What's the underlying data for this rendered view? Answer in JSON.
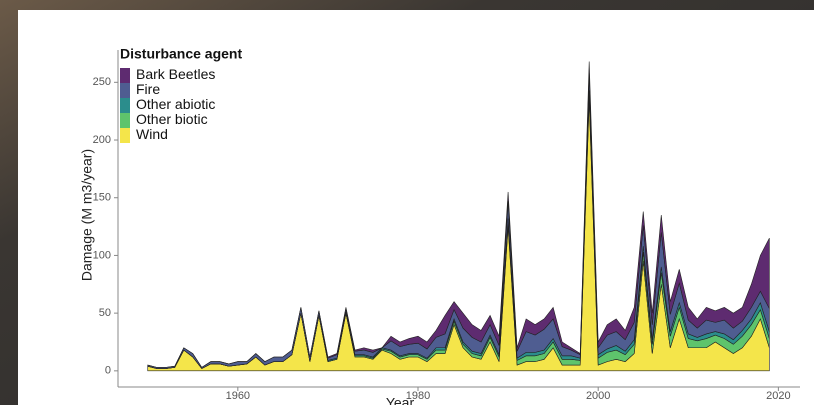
{
  "chart_data": {
    "type": "stacked_area",
    "legend_title": "Disturbance agent",
    "x_label": "Year",
    "y_label": "Damage (M m3/year)",
    "x": [
      1950,
      1951,
      1952,
      1953,
      1954,
      1955,
      1956,
      1957,
      1958,
      1959,
      1960,
      1961,
      1962,
      1963,
      1964,
      1965,
      1966,
      1967,
      1968,
      1969,
      1970,
      1971,
      1972,
      1973,
      1974,
      1975,
      1976,
      1977,
      1978,
      1979,
      1980,
      1981,
      1982,
      1983,
      1984,
      1985,
      1986,
      1987,
      1988,
      1989,
      1990,
      1991,
      1992,
      1993,
      1994,
      1995,
      1996,
      1997,
      1998,
      1999,
      2000,
      2001,
      2002,
      2003,
      2004,
      2005,
      2006,
      2007,
      2008,
      2009,
      2010,
      2011,
      2012,
      2013,
      2014,
      2015,
      2016,
      2017,
      2018,
      2019
    ],
    "series": [
      {
        "name": "Bark Beetles",
        "color": "#5e2b70",
        "values": [
          0,
          0,
          0,
          0,
          0,
          0,
          0,
          0,
          0,
          0,
          0,
          0,
          0,
          0,
          0,
          0,
          0,
          0,
          0,
          0,
          1,
          1,
          1,
          1,
          2,
          2,
          0,
          4,
          4,
          5,
          6,
          6,
          6,
          16,
          7,
          13,
          11,
          10,
          8,
          8,
          8,
          3,
          11,
          9,
          9,
          10,
          4,
          2,
          1,
          10,
          5,
          9,
          11,
          8,
          13,
          12,
          10,
          15,
          11,
          12,
          11,
          8,
          11,
          10,
          11,
          13,
          12,
          20,
          31,
          61
        ]
      },
      {
        "name": "Fire",
        "color": "#4f5d91",
        "values": [
          1,
          1,
          1,
          1,
          2,
          3,
          1,
          2,
          2,
          2,
          3,
          2,
          3,
          3,
          4,
          4,
          4,
          5,
          4,
          4,
          2,
          3,
          3,
          3,
          4,
          4,
          0,
          8,
          8,
          8,
          9,
          8,
          9,
          12,
          8,
          12,
          12,
          10,
          9,
          8,
          15,
          6,
          18,
          15,
          18,
          17,
          8,
          5,
          3,
          15,
          6,
          12,
          12,
          10,
          15,
          18,
          13,
          30,
          15,
          17,
          12,
          8,
          12,
          8,
          12,
          10,
          8,
          10,
          10,
          20
        ]
      },
      {
        "name": "Other abiotic",
        "color": "#2b8d8c",
        "values": [
          0,
          0,
          0,
          0,
          0,
          0,
          0,
          0,
          0,
          0,
          0,
          0,
          0,
          0,
          0,
          0,
          0,
          0,
          0,
          0,
          1,
          1,
          1,
          1,
          1,
          1,
          1,
          1,
          1,
          1,
          1,
          1,
          2,
          2,
          2,
          2,
          2,
          2,
          2,
          2,
          3,
          2,
          3,
          3,
          3,
          3,
          3,
          3,
          2,
          3,
          3,
          3,
          4,
          3,
          4,
          5,
          4,
          5,
          4,
          4,
          4,
          3,
          4,
          3,
          4,
          4,
          5,
          5,
          6,
          6
        ]
      },
      {
        "name": "Other biotic",
        "color": "#5ec46c",
        "values": [
          0,
          0,
          0,
          0,
          0,
          0,
          0,
          0,
          0,
          0,
          0,
          0,
          0,
          0,
          0,
          0,
          0,
          0,
          0,
          0,
          0,
          0,
          0,
          1,
          1,
          1,
          1,
          2,
          2,
          2,
          2,
          2,
          3,
          3,
          3,
          3,
          3,
          3,
          4,
          4,
          4,
          4,
          5,
          5,
          5,
          5,
          5,
          5,
          4,
          5,
          6,
          8,
          8,
          6,
          8,
          8,
          8,
          10,
          10,
          10,
          8,
          6,
          8,
          6,
          8,
          8,
          10,
          10,
          8,
          8
        ]
      },
      {
        "name": "Wind",
        "color": "#f4e54a",
        "values": [
          4,
          2,
          2,
          3,
          18,
          12,
          2,
          6,
          6,
          4,
          5,
          6,
          12,
          5,
          8,
          8,
          14,
          50,
          8,
          48,
          8,
          10,
          50,
          12,
          12,
          10,
          18,
          15,
          10,
          12,
          12,
          8,
          15,
          15,
          40,
          20,
          12,
          10,
          25,
          8,
          125,
          5,
          8,
          8,
          10,
          20,
          5,
          5,
          5,
          235,
          5,
          8,
          10,
          8,
          15,
          95,
          15,
          75,
          20,
          45,
          20,
          20,
          20,
          25,
          20,
          15,
          20,
          30,
          45,
          20
        ]
      }
    ],
    "xlim": [
      1946.7,
      2022.4
    ],
    "ylim": [
      -14,
      278
    ],
    "xticks": [
      1960,
      1980,
      2000,
      2020
    ],
    "yticks": [
      0,
      50,
      100,
      150,
      200,
      250
    ],
    "grid": false,
    "legend_position": "top-left"
  }
}
